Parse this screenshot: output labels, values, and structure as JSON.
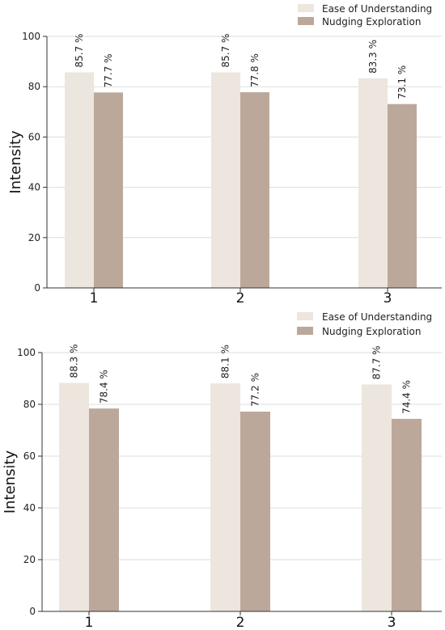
{
  "chart_data": [
    {
      "type": "bar",
      "categories": [
        "1",
        "2",
        "3"
      ],
      "ylabel": "Intensity",
      "ylim": [
        0,
        100
      ],
      "yticks": [
        0,
        20,
        40,
        60,
        80,
        100
      ],
      "grid": "horizontal",
      "legend": "top-right",
      "series": [
        {
          "name": "Ease of Understanding",
          "color": "#ece6de",
          "values": [
            85.7,
            85.7,
            83.3
          ],
          "labels": [
            "85.7 %",
            "85.7 %",
            "83.3 %"
          ]
        },
        {
          "name": "Nudging Exploration",
          "color": "#bca89b",
          "values": [
            77.7,
            77.8,
            73.1
          ],
          "labels": [
            "77.7 %",
            "77.8 %",
            "73.1 %"
          ]
        }
      ]
    },
    {
      "type": "bar",
      "categories": [
        "1",
        "2",
        "3"
      ],
      "ylabel": "Intensity",
      "ylim": [
        0,
        100
      ],
      "yticks": [
        0,
        20,
        40,
        60,
        80,
        100
      ],
      "grid": "horizontal",
      "legend": "top-right",
      "series": [
        {
          "name": "Ease of Understanding",
          "color": "#ece6de",
          "values": [
            88.3,
            88.1,
            87.7
          ],
          "labels": [
            "88.3 %",
            "88.1 %",
            "87.7 %"
          ]
        },
        {
          "name": "Nudging Exploration",
          "color": "#bca89b",
          "values": [
            78.4,
            77.2,
            74.4
          ],
          "labels": [
            "78.4 %",
            "77.2 %",
            "74.4 %"
          ]
        }
      ]
    }
  ]
}
